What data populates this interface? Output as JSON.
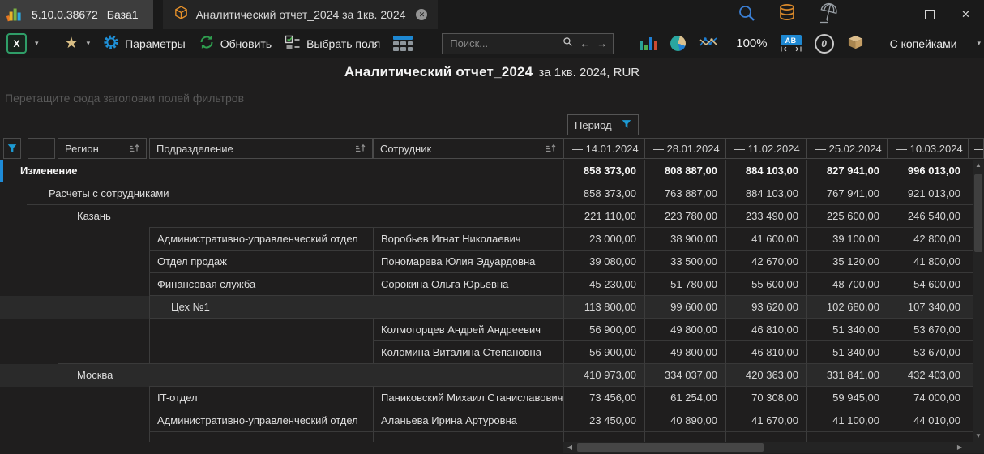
{
  "titlebar": {
    "version": "5.10.0.38672",
    "database_name": "База1",
    "tab_title": "Аналитический отчет_2024 за 1кв. 2024"
  },
  "toolbar": {
    "params_label": "Параметры",
    "refresh_label": "Обновить",
    "select_fields_label": "Выбрать поля",
    "search_placeholder": "Поиск...",
    "zoom_level": "100%",
    "currency_mode_label": "С копейками"
  },
  "report": {
    "title_main": "Аналитический отчет_2024",
    "title_suffix": "за 1кв. 2024, RUR",
    "filter_hint": "Перетащите сюда заголовки полей фильтров"
  },
  "pivot": {
    "period_field": "Период",
    "column_headers": {
      "region": "Регион",
      "department": "Подразделение",
      "employee": "Сотрудник"
    },
    "period_columns": [
      "— 14.01.2024",
      "— 28.01.2024",
      "— 11.02.2024",
      "— 25.02.2024",
      "— 10.03.2024",
      "—"
    ],
    "rows": [
      {
        "type": "group",
        "level": 0,
        "label": "Изменение",
        "bold": true,
        "accent": true,
        "values": [
          "858 373,00",
          "808 887,00",
          "884 103,00",
          "827 941,00",
          "996 013,00"
        ]
      },
      {
        "type": "group",
        "level": 1,
        "label": "Расчеты с сотрудниками",
        "values": [
          "858 373,00",
          "763 887,00",
          "884 103,00",
          "767 941,00",
          "921 013,00"
        ]
      },
      {
        "type": "group",
        "level": 2,
        "label": "Казань",
        "values": [
          "221 110,00",
          "223 780,00",
          "233 490,00",
          "225 600,00",
          "246 540,00"
        ]
      },
      {
        "type": "detail",
        "department": "Административно-управленческий отдел",
        "employee": "Воробьев Игнат Николаевич",
        "values": [
          "23 000,00",
          "38 900,00",
          "41 600,00",
          "39 100,00",
          "42 800,00"
        ]
      },
      {
        "type": "detail",
        "department": "Отдел продаж",
        "employee": "Пономарева Юлия Эдуардовна",
        "values": [
          "39 080,00",
          "33 500,00",
          "42 670,00",
          "35 120,00",
          "41 800,00"
        ]
      },
      {
        "type": "detail",
        "department": "Финансовая служба",
        "employee": "Сорокина Ольга Юрьевна",
        "values": [
          "45 230,00",
          "51 780,00",
          "55 600,00",
          "48 700,00",
          "54 600,00"
        ]
      },
      {
        "type": "deptgroup",
        "label": "Цех №1",
        "highlight": true,
        "values": [
          "113 800,00",
          "99 600,00",
          "93 620,00",
          "102 680,00",
          "107 340,00"
        ]
      },
      {
        "type": "detail",
        "department": "",
        "employee": "Колмогорцев Андрей Андреевич",
        "values": [
          "56 900,00",
          "49 800,00",
          "46 810,00",
          "51 340,00",
          "53 670,00"
        ]
      },
      {
        "type": "detail",
        "department": "",
        "employee": "Коломина Виталина Степановна",
        "values": [
          "56 900,00",
          "49 800,00",
          "46 810,00",
          "51 340,00",
          "53 670,00"
        ]
      },
      {
        "type": "group",
        "level": 2,
        "label": "Москва",
        "highlight": true,
        "values": [
          "410 973,00",
          "334 037,00",
          "420 363,00",
          "331 841,00",
          "432 403,00"
        ]
      },
      {
        "type": "detail",
        "department": "IT-отдел",
        "employee": "Паниковский Михаил Станиславович",
        "values": [
          "73 456,00",
          "61 254,00",
          "70 308,00",
          "59 945,00",
          "74 000,00"
        ]
      },
      {
        "type": "detail",
        "department": "Административно-управленческий отдел",
        "employee": "Аланьева Ирина Артуровна",
        "values": [
          "23 450,00",
          "40 890,00",
          "41 670,00",
          "41 100,00",
          "44 010,00"
        ]
      }
    ]
  },
  "icons": {
    "caret_down": "▾",
    "star": "★",
    "tab_close": "✕",
    "window_close": "✕",
    "search_back_arrow": "←",
    "search_forward_arrow": "→",
    "excel_letter": "X",
    "ab_label": "AB",
    "zero_glyph": "0",
    "scroll_up": "▲",
    "scroll_down": "▼",
    "scroll_left": "◀",
    "scroll_right": "▶"
  },
  "colors": {
    "accent_blue": "#1e8bd8",
    "filter_blue": "#1d9ad3",
    "excel_green": "#2f9e68",
    "refresh_green": "#2f9e4f",
    "star_tan": "#d9be85",
    "database_orange": "#d8882b",
    "cube_orange": "#e8922a"
  }
}
